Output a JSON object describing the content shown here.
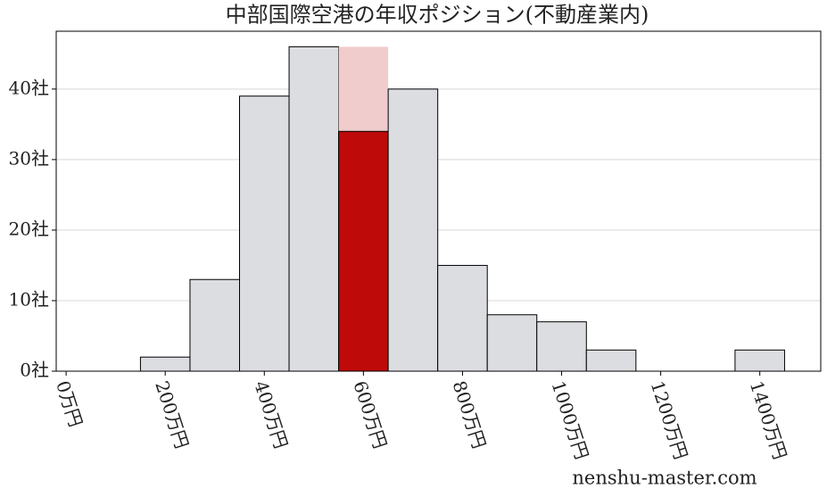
{
  "chart_data": {
    "type": "histogram",
    "title": "中部国際空港の年収ポジション(不動産業内)",
    "bins": [
      150,
      250,
      350,
      450,
      550,
      650,
      750,
      850,
      950,
      1050,
      1150,
      1250,
      1350,
      1450
    ],
    "series": [
      {
        "color": "#dcdde0",
        "values": [
          2,
          13,
          39,
          46,
          46,
          40,
          15,
          8,
          7,
          3,
          0,
          0,
          3
        ]
      },
      {
        "color": "#bf0a0a",
        "values": [
          null,
          null,
          null,
          null,
          34,
          null,
          null,
          null,
          null,
          null,
          null,
          null,
          null
        ]
      }
    ],
    "highlight_color": "#f0cccc",
    "xlim": [
      -20,
      1523
    ],
    "xticks": [
      {
        "value": 0,
        "label": "0万円"
      },
      {
        "value": 200,
        "label": "200万円"
      },
      {
        "value": 400,
        "label": "400万円"
      },
      {
        "value": 600,
        "label": "600万円"
      },
      {
        "value": 800,
        "label": "800万円"
      },
      {
        "value": 1000,
        "label": "1000万円"
      },
      {
        "value": 1200,
        "label": "1200万円"
      },
      {
        "value": 1400,
        "label": "1400万円"
      }
    ],
    "ylim": [
      0,
      48.2
    ],
    "yticks": [
      {
        "value": 0,
        "label": "0社"
      },
      {
        "value": 10,
        "label": "10社"
      },
      {
        "value": 20,
        "label": "20社"
      },
      {
        "value": 30,
        "label": "30社"
      },
      {
        "value": 40,
        "label": "40社"
      }
    ],
    "grid": true,
    "watermark": "nenshu-master.com"
  }
}
